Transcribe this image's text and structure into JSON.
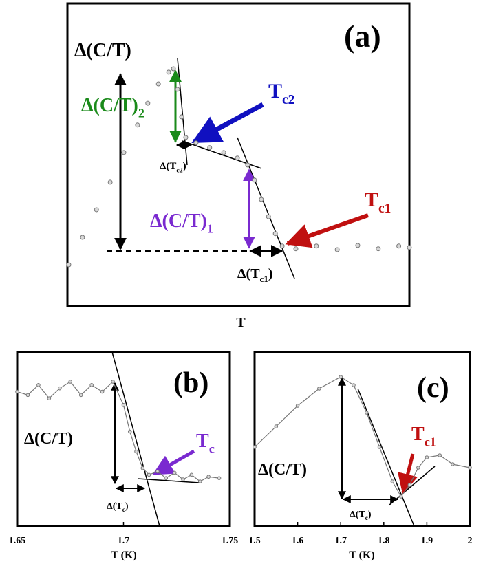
{
  "chart_data": [
    {
      "type": "scatter",
      "label": "(a)",
      "xlabel": "T",
      "color": "#777777",
      "x": [
        0.4,
        4.4,
        8.5,
        12.5,
        16.5,
        20.5,
        23.5,
        26.6,
        29.6,
        31.0,
        32.2,
        33.4,
        34.6,
        37.6,
        41.6,
        45.7,
        49.7,
        52.7,
        54.7,
        56.7,
        58.8,
        60.8,
        62.8,
        66.8,
        72.8,
        78.9,
        84.9,
        90.9,
        96.9,
        100
      ],
      "values": [
        13.6,
        22.7,
        31.8,
        40.9,
        50.7,
        59.8,
        67.0,
        73.4,
        77.3,
        78.4,
        71.6,
        62.5,
        55.7,
        53.9,
        52.3,
        50.7,
        48.9,
        46.6,
        41.6,
        35.2,
        29.5,
        23.9,
        19.8,
        18.9,
        19.8,
        18.6,
        20.0,
        18.9,
        19.8,
        19.3
      ],
      "annotations": [
        {
          "text": "(a)",
          "color": "#000000"
        },
        {
          "text": "Δ(C/T)",
          "color": "#000000"
        },
        {
          "text": "Δ(C/T)",
          "sub": "2",
          "color": "#1a8a1a"
        },
        {
          "text": "T",
          "sub": "c2",
          "color": "#1010c0"
        },
        {
          "text": "Δ(T",
          "sub": "c2",
          "after": ")",
          "color": "#000000"
        },
        {
          "text": "T",
          "sub": "c1",
          "color": "#c01010"
        },
        {
          "text": "Δ(C/T)",
          "sub": "1",
          "color": "#7a2ad0"
        },
        {
          "text": "Δ(T",
          "sub": "c1",
          "after": ")",
          "color": "#000000"
        }
      ]
    },
    {
      "type": "line",
      "label": "(b)",
      "xlabel": "T (K)",
      "color": "#777777",
      "xlim": [
        1.65,
        1.75
      ],
      "xticks": [
        1.65,
        1.7,
        1.75
      ],
      "x": [
        1.65,
        1.655,
        1.66,
        1.665,
        1.67,
        1.675,
        1.68,
        1.685,
        1.69,
        1.695,
        1.7,
        1.703,
        1.706,
        1.709,
        1.712,
        1.716,
        1.72,
        1.724,
        1.728,
        1.732,
        1.736,
        1.74,
        1.745
      ],
      "values": [
        200,
        195,
        210,
        190,
        205,
        215,
        195,
        210,
        200,
        215,
        180,
        140,
        110,
        85,
        75,
        80,
        70,
        78,
        68,
        75,
        65,
        72,
        70
      ],
      "annotations": [
        {
          "text": "(b)",
          "color": "#000000"
        },
        {
          "text": "Δ(C/T)",
          "color": "#000000"
        },
        {
          "text": "T",
          "sub": "c",
          "color": "#7a2ad0"
        },
        {
          "text": "Δ(T",
          "sub": "c",
          "after": ")",
          "color": "#000000"
        }
      ]
    },
    {
      "type": "line",
      "label": "(c)",
      "xlabel": "T (K)",
      "color": "#777777",
      "xlim": [
        1.5,
        2
      ],
      "xticks": [
        1.5,
        1.6,
        1.7,
        1.8,
        1.9,
        2
      ],
      "x": [
        1.5,
        1.55,
        1.6,
        1.65,
        1.7,
        1.73,
        1.76,
        1.79,
        1.82,
        1.84,
        1.86,
        1.88,
        1.9,
        1.93,
        1.96,
        2.0
      ],
      "values": [
        115,
        145,
        175,
        200,
        217,
        205,
        165,
        115,
        65,
        43,
        60,
        85,
        100,
        103,
        90,
        85
      ],
      "annotations": [
        {
          "text": "(c)",
          "color": "#000000"
        },
        {
          "text": "Δ(C/T)",
          "color": "#000000"
        },
        {
          "text": "T",
          "sub": "c1",
          "color": "#c01010"
        },
        {
          "text": "Δ(T",
          "sub": "c",
          "after": ")",
          "color": "#000000"
        }
      ]
    }
  ]
}
